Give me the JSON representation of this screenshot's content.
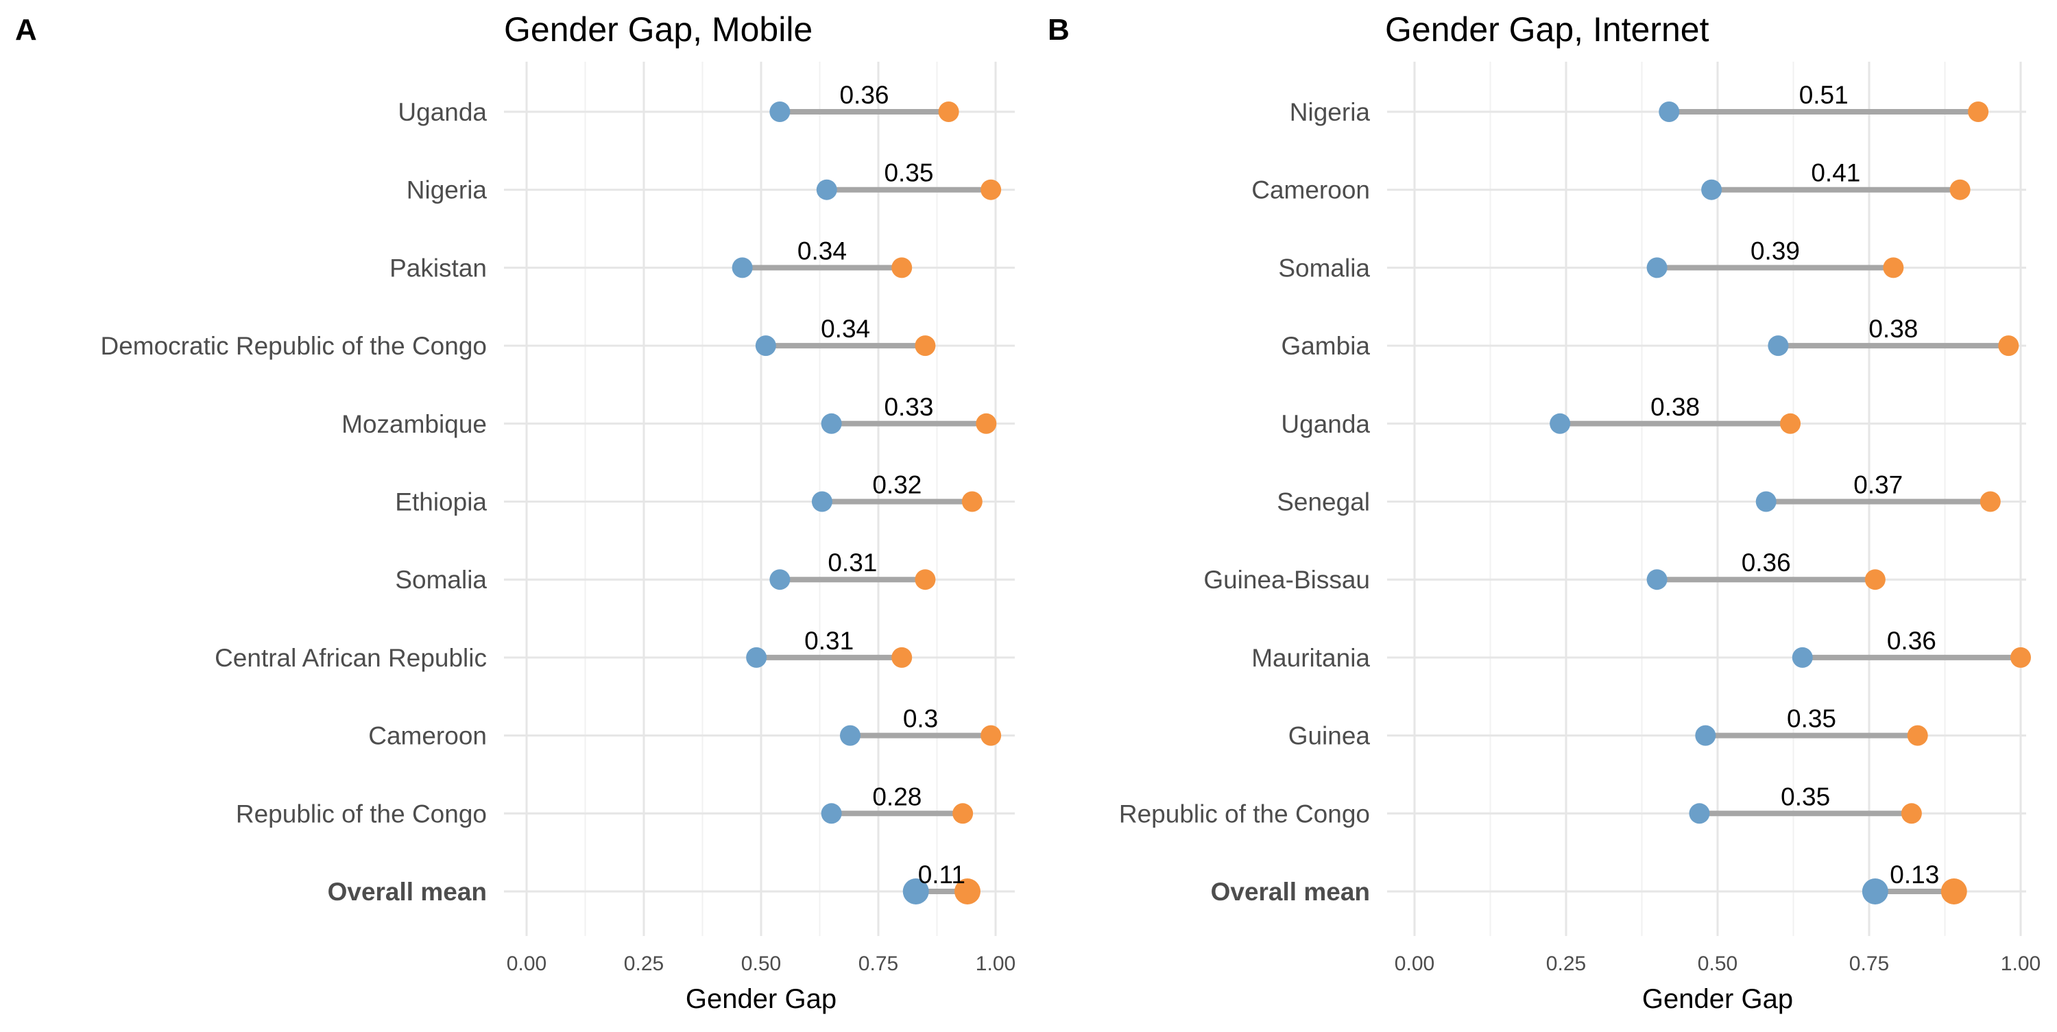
{
  "colors": {
    "female": "#6b9fc9",
    "male": "#f5933f",
    "segment": "#a6a6a6",
    "grid_major": "#e6e6e6",
    "grid_minor": "#f1f1f1"
  },
  "chart_data": [
    {
      "type": "dumbbell",
      "panel_letter": "A",
      "title": "Gender Gap, Mobile",
      "xlabel": "Gender Gap",
      "ylabel": "",
      "xlim": [
        0,
        1
      ],
      "x_ticks": [
        0,
        0.25,
        0.5,
        0.75,
        1
      ],
      "x_tick_labels": [
        "0.00",
        "0.25",
        "0.50",
        "0.75",
        "1.00"
      ],
      "grid": true,
      "rows": [
        {
          "label": "Uganda",
          "low": 0.54,
          "high": 0.9,
          "gap_label": "0.36",
          "bold": false
        },
        {
          "label": "Nigeria",
          "low": 0.64,
          "high": 0.99,
          "gap_label": "0.35",
          "bold": false
        },
        {
          "label": "Pakistan",
          "low": 0.46,
          "high": 0.8,
          "gap_label": "0.34",
          "bold": false
        },
        {
          "label": "Democratic Republic of the Congo",
          "low": 0.51,
          "high": 0.85,
          "gap_label": "0.34",
          "bold": false
        },
        {
          "label": "Mozambique",
          "low": 0.65,
          "high": 0.98,
          "gap_label": "0.33",
          "bold": false
        },
        {
          "label": "Ethiopia",
          "low": 0.63,
          "high": 0.95,
          "gap_label": "0.32",
          "bold": false
        },
        {
          "label": "Somalia",
          "low": 0.54,
          "high": 0.85,
          "gap_label": "0.31",
          "bold": false
        },
        {
          "label": "Central African Republic",
          "low": 0.49,
          "high": 0.8,
          "gap_label": "0.31",
          "bold": false
        },
        {
          "label": "Cameroon",
          "low": 0.69,
          "high": 0.99,
          "gap_label": "0.3",
          "bold": false
        },
        {
          "label": "Republic of the Congo",
          "low": 0.65,
          "high": 0.93,
          "gap_label": "0.28",
          "bold": false
        },
        {
          "label": "Overall mean",
          "low": 0.83,
          "high": 0.94,
          "gap_label": "0.11",
          "bold": true
        }
      ]
    },
    {
      "type": "dumbbell",
      "panel_letter": "B",
      "title": "Gender Gap, Internet",
      "xlabel": "Gender Gap",
      "ylabel": "",
      "xlim": [
        0,
        1
      ],
      "x_ticks": [
        0,
        0.25,
        0.5,
        0.75,
        1
      ],
      "x_tick_labels": [
        "0.00",
        "0.25",
        "0.50",
        "0.75",
        "1.00"
      ],
      "grid": true,
      "rows": [
        {
          "label": "Nigeria",
          "low": 0.42,
          "high": 0.93,
          "gap_label": "0.51",
          "bold": false
        },
        {
          "label": "Cameroon",
          "low": 0.49,
          "high": 0.9,
          "gap_label": "0.41",
          "bold": false
        },
        {
          "label": "Somalia",
          "low": 0.4,
          "high": 0.79,
          "gap_label": "0.39",
          "bold": false
        },
        {
          "label": "Gambia",
          "low": 0.6,
          "high": 0.98,
          "gap_label": "0.38",
          "bold": false
        },
        {
          "label": "Uganda",
          "low": 0.24,
          "high": 0.62,
          "gap_label": "0.38",
          "bold": false
        },
        {
          "label": "Senegal",
          "low": 0.58,
          "high": 0.95,
          "gap_label": "0.37",
          "bold": false
        },
        {
          "label": "Guinea-Bissau",
          "low": 0.4,
          "high": 0.76,
          "gap_label": "0.36",
          "bold": false
        },
        {
          "label": "Mauritania",
          "low": 0.64,
          "high": 1.0,
          "gap_label": "0.36",
          "bold": false
        },
        {
          "label": "Guinea",
          "low": 0.48,
          "high": 0.83,
          "gap_label": "0.35",
          "bold": false
        },
        {
          "label": "Republic of the Congo",
          "low": 0.47,
          "high": 0.82,
          "gap_label": "0.35",
          "bold": false
        },
        {
          "label": "Overall mean",
          "low": 0.76,
          "high": 0.89,
          "gap_label": "0.13",
          "bold": true
        }
      ]
    }
  ]
}
